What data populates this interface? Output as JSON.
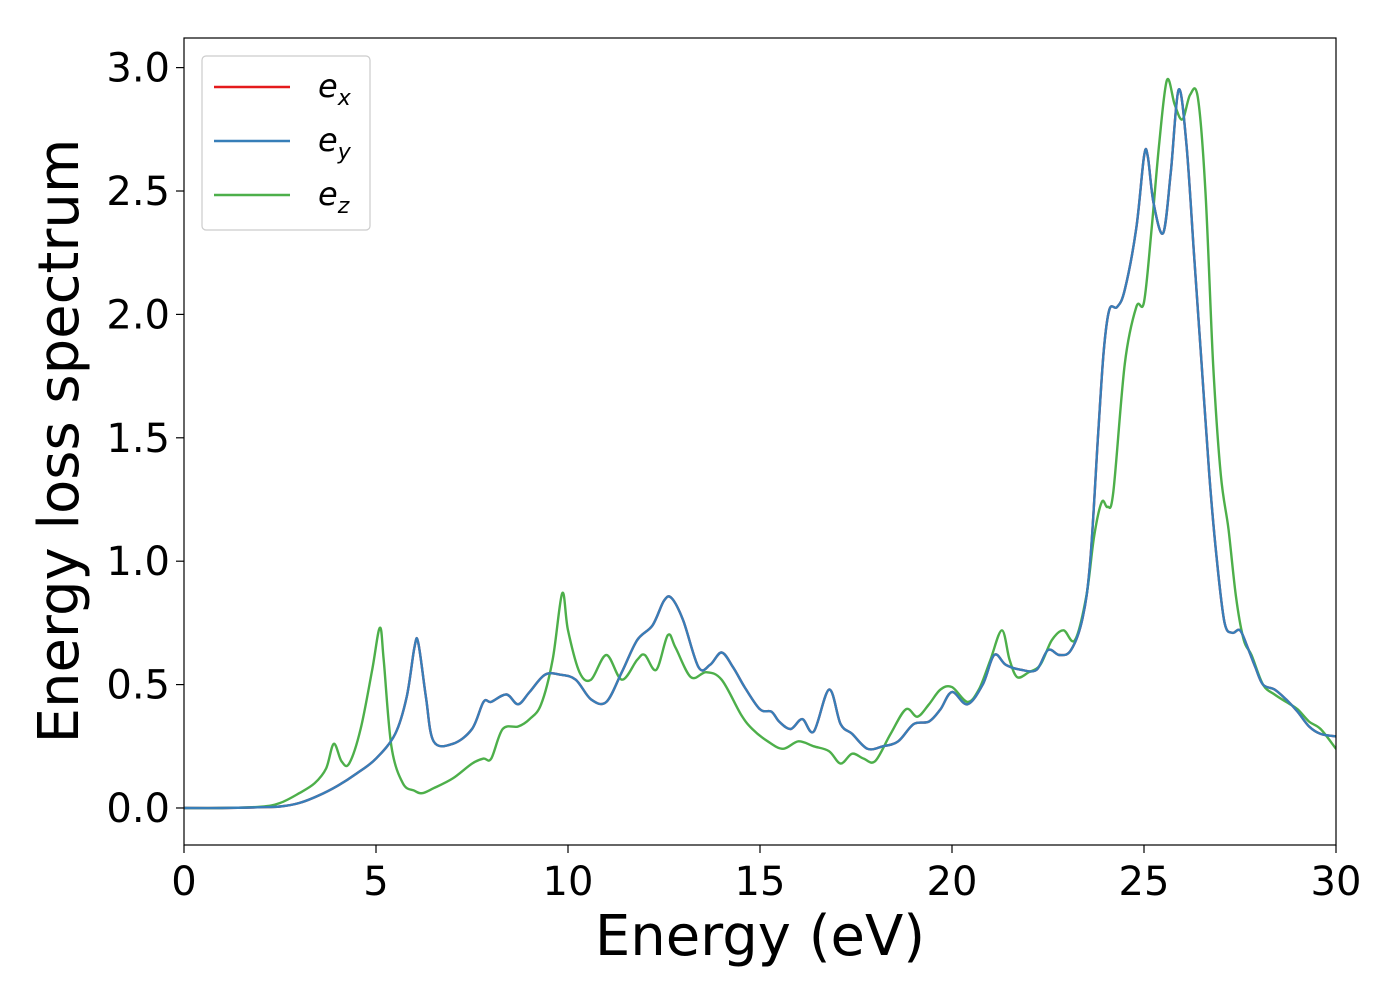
{
  "chart_data": {
    "type": "line",
    "xlabel": "Energy (eV)",
    "ylabel": "Energy loss spectrum",
    "xlim": [
      0,
      30
    ],
    "ylim": [
      -0.15,
      3.12
    ],
    "x_ticks": [
      "0",
      "5",
      "10",
      "15",
      "20",
      "25",
      "30"
    ],
    "y_ticks": [
      "0.0",
      "0.5",
      "1.0",
      "1.5",
      "2.0",
      "2.5",
      "3.0"
    ],
    "grid": false,
    "legend_position": "top-left",
    "colors": {
      "ex": "#e41a1c",
      "ey": "#377eb8",
      "ez": "#4daf4a"
    },
    "series": [
      {
        "id": "ex",
        "legend_base": "e",
        "legend_sub": "x",
        "x": [
          0,
          1,
          2,
          2.5,
          3,
          3.5,
          4,
          4.5,
          5,
          5.5,
          5.8,
          6.0,
          6.1,
          6.3,
          6.5,
          7,
          7.5,
          7.8,
          8.0,
          8.4,
          8.7,
          9.0,
          9.4,
          9.8,
          10.2,
          10.6,
          11.0,
          11.4,
          11.8,
          12.2,
          12.5,
          12.7,
          13.0,
          13.4,
          13.7,
          14.0,
          14.3,
          14.6,
          15.0,
          15.3,
          15.5,
          15.8,
          16.1,
          16.4,
          16.8,
          17.1,
          17.4,
          17.8,
          18.2,
          18.6,
          19.0,
          19.4,
          19.7,
          20.0,
          20.4,
          20.8,
          21.1,
          21.4,
          21.8,
          22.2,
          22.5,
          22.8,
          23.1,
          23.4,
          23.6,
          23.8,
          23.95,
          24.1,
          24.3,
          24.5,
          24.8,
          25.0,
          25.1,
          25.25,
          25.5,
          25.7,
          25.9,
          26.1,
          26.3,
          26.5,
          26.7,
          26.9,
          27.1,
          27.3,
          27.5,
          27.7,
          27.9,
          28.1,
          28.4,
          28.7,
          29.0,
          29.3,
          29.6,
          30.0
        ],
        "y": [
          0,
          0,
          0.003,
          0.006,
          0.02,
          0.05,
          0.09,
          0.14,
          0.2,
          0.3,
          0.45,
          0.65,
          0.67,
          0.45,
          0.27,
          0.26,
          0.32,
          0.43,
          0.43,
          0.46,
          0.42,
          0.47,
          0.54,
          0.54,
          0.52,
          0.44,
          0.43,
          0.55,
          0.68,
          0.74,
          0.84,
          0.85,
          0.76,
          0.57,
          0.58,
          0.63,
          0.57,
          0.49,
          0.4,
          0.39,
          0.35,
          0.32,
          0.36,
          0.31,
          0.48,
          0.34,
          0.3,
          0.24,
          0.25,
          0.27,
          0.34,
          0.35,
          0.4,
          0.47,
          0.42,
          0.5,
          0.62,
          0.58,
          0.56,
          0.56,
          0.64,
          0.62,
          0.64,
          0.77,
          1.0,
          1.5,
          1.85,
          2.02,
          2.03,
          2.1,
          2.35,
          2.64,
          2.64,
          2.45,
          2.33,
          2.58,
          2.91,
          2.7,
          2.25,
          1.8,
          1.35,
          1.0,
          0.75,
          0.71,
          0.72,
          0.65,
          0.57,
          0.5,
          0.48,
          0.44,
          0.39,
          0.33,
          0.3,
          0.29
        ]
      },
      {
        "id": "ey",
        "legend_base": "e",
        "legend_sub": "y",
        "x": [
          0,
          1,
          2,
          2.5,
          3,
          3.5,
          4,
          4.5,
          5,
          5.5,
          5.8,
          6.0,
          6.1,
          6.3,
          6.5,
          7,
          7.5,
          7.8,
          8.0,
          8.4,
          8.7,
          9.0,
          9.4,
          9.8,
          10.2,
          10.6,
          11.0,
          11.4,
          11.8,
          12.2,
          12.5,
          12.7,
          13.0,
          13.4,
          13.7,
          14.0,
          14.3,
          14.6,
          15.0,
          15.3,
          15.5,
          15.8,
          16.1,
          16.4,
          16.8,
          17.1,
          17.4,
          17.8,
          18.2,
          18.6,
          19.0,
          19.4,
          19.7,
          20.0,
          20.4,
          20.8,
          21.1,
          21.4,
          21.8,
          22.2,
          22.5,
          22.8,
          23.1,
          23.4,
          23.6,
          23.8,
          23.95,
          24.1,
          24.3,
          24.5,
          24.8,
          25.0,
          25.1,
          25.25,
          25.5,
          25.7,
          25.9,
          26.1,
          26.3,
          26.5,
          26.7,
          26.9,
          27.1,
          27.3,
          27.5,
          27.7,
          27.9,
          28.1,
          28.4,
          28.7,
          29.0,
          29.3,
          29.6,
          30.0
        ],
        "y": [
          0,
          0,
          0.003,
          0.006,
          0.02,
          0.05,
          0.09,
          0.14,
          0.2,
          0.3,
          0.45,
          0.65,
          0.67,
          0.45,
          0.27,
          0.26,
          0.32,
          0.43,
          0.43,
          0.46,
          0.42,
          0.47,
          0.54,
          0.54,
          0.52,
          0.44,
          0.43,
          0.55,
          0.68,
          0.74,
          0.84,
          0.85,
          0.76,
          0.57,
          0.58,
          0.63,
          0.57,
          0.49,
          0.4,
          0.39,
          0.35,
          0.32,
          0.36,
          0.31,
          0.48,
          0.34,
          0.3,
          0.24,
          0.25,
          0.27,
          0.34,
          0.35,
          0.4,
          0.47,
          0.42,
          0.5,
          0.62,
          0.58,
          0.56,
          0.56,
          0.64,
          0.62,
          0.64,
          0.77,
          1.0,
          1.5,
          1.85,
          2.02,
          2.03,
          2.1,
          2.35,
          2.64,
          2.64,
          2.45,
          2.33,
          2.58,
          2.91,
          2.7,
          2.25,
          1.8,
          1.35,
          1.0,
          0.75,
          0.71,
          0.72,
          0.65,
          0.57,
          0.5,
          0.48,
          0.44,
          0.39,
          0.33,
          0.3,
          0.29
        ]
      },
      {
        "id": "ez",
        "legend_base": "e",
        "legend_sub": "z",
        "x": [
          0,
          1,
          2,
          2.5,
          3,
          3.4,
          3.7,
          3.9,
          4.1,
          4.3,
          4.6,
          4.9,
          5.1,
          5.2,
          5.4,
          5.7,
          6.0,
          6.2,
          6.5,
          7.0,
          7.5,
          7.8,
          8.0,
          8.3,
          8.7,
          9.0,
          9.3,
          9.6,
          9.85,
          10.0,
          10.3,
          10.6,
          11.0,
          11.4,
          11.8,
          12.0,
          12.3,
          12.6,
          12.8,
          13.2,
          13.6,
          14.0,
          14.5,
          14.8,
          15.2,
          15.6,
          16.0,
          16.4,
          16.8,
          17.1,
          17.4,
          17.7,
          18.0,
          18.4,
          18.8,
          19.1,
          19.4,
          19.7,
          20.0,
          20.4,
          20.7,
          21.0,
          21.3,
          21.5,
          21.7,
          22.0,
          22.3,
          22.6,
          22.9,
          23.2,
          23.5,
          23.7,
          23.9,
          24.05,
          24.2,
          24.5,
          24.8,
          25.0,
          25.2,
          25.4,
          25.6,
          25.8,
          26.0,
          26.2,
          26.4,
          26.6,
          26.8,
          27.0,
          27.2,
          27.4,
          27.6,
          27.8,
          28.1,
          28.4,
          28.7,
          29.0,
          29.3,
          29.6,
          30.0
        ],
        "y": [
          0,
          0,
          0.005,
          0.02,
          0.06,
          0.1,
          0.16,
          0.26,
          0.19,
          0.18,
          0.32,
          0.56,
          0.73,
          0.6,
          0.25,
          0.1,
          0.07,
          0.06,
          0.08,
          0.12,
          0.18,
          0.2,
          0.2,
          0.32,
          0.33,
          0.36,
          0.42,
          0.6,
          0.87,
          0.72,
          0.55,
          0.52,
          0.62,
          0.52,
          0.6,
          0.62,
          0.56,
          0.7,
          0.65,
          0.53,
          0.55,
          0.52,
          0.38,
          0.32,
          0.27,
          0.24,
          0.27,
          0.25,
          0.23,
          0.18,
          0.22,
          0.2,
          0.19,
          0.3,
          0.4,
          0.37,
          0.42,
          0.48,
          0.49,
          0.43,
          0.48,
          0.6,
          0.72,
          0.6,
          0.53,
          0.55,
          0.58,
          0.68,
          0.72,
          0.68,
          0.86,
          1.1,
          1.24,
          1.22,
          1.28,
          1.8,
          2.03,
          2.05,
          2.35,
          2.7,
          2.95,
          2.85,
          2.79,
          2.89,
          2.88,
          2.5,
          1.8,
          1.35,
          1.13,
          0.85,
          0.68,
          0.62,
          0.5,
          0.46,
          0.43,
          0.4,
          0.35,
          0.32,
          0.24
        ]
      }
    ]
  }
}
